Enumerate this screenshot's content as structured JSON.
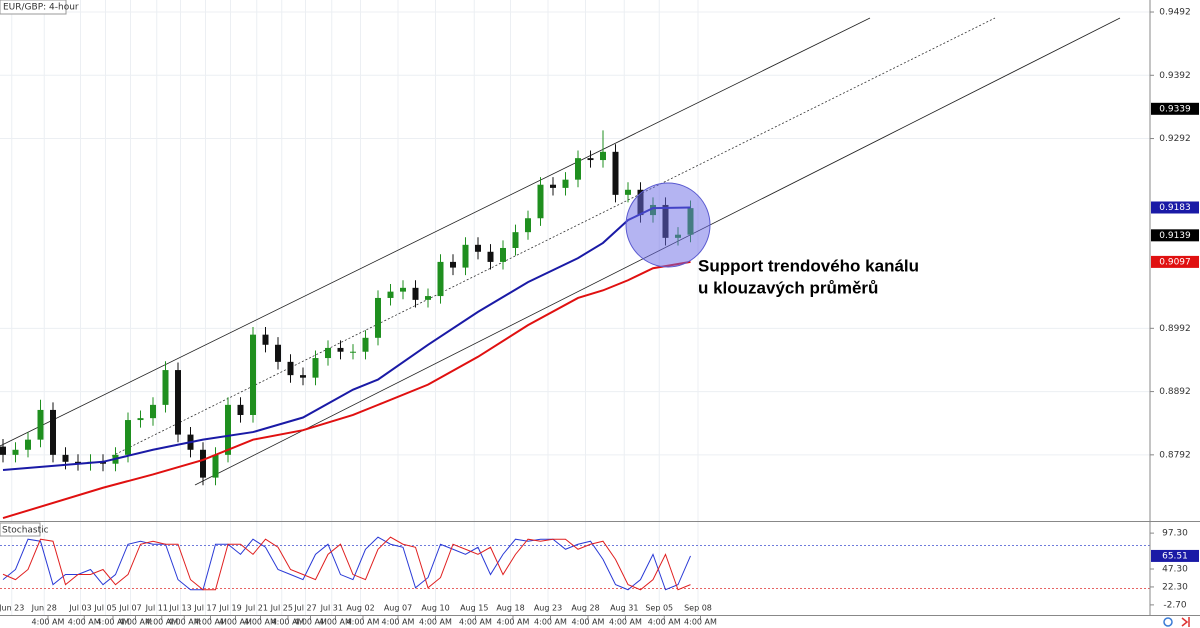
{
  "chart_data": {
    "type": "candlestick",
    "title": "EUR/GBP: 4-hour",
    "annotation": [
      "Support trendového kanálu",
      "u klouzavých průměrů"
    ],
    "up_color": "#1f8f1f",
    "down_color": "#111111",
    "open": [
      0.8805,
      0.8792,
      0.88,
      0.8816,
      0.8863,
      0.8792,
      0.8781,
      0.8779,
      0.8781,
      0.8778,
      0.8792,
      0.8847,
      0.885,
      0.8871,
      0.8926,
      0.8824,
      0.88,
      0.8756,
      0.8792,
      0.8871,
      0.8855,
      0.8982,
      0.8966,
      0.8939,
      0.8918,
      0.8914,
      0.8945,
      0.8961,
      0.8955,
      0.8955,
      0.8977,
      0.904,
      0.905,
      0.9056,
      0.9037,
      0.9043,
      0.9097,
      0.9088,
      0.9124,
      0.9113,
      0.9097,
      0.9119,
      0.9144,
      0.9166,
      0.9219,
      0.9214,
      0.9227,
      0.9261,
      0.9258,
      0.9271,
      0.9203,
      0.9211,
      0.9171,
      0.9187,
      0.9135,
      0.914
    ],
    "high": [
      0.8817,
      0.8812,
      0.8828,
      0.8879,
      0.8875,
      0.8804,
      0.8793,
      0.8793,
      0.8793,
      0.8804,
      0.8859,
      0.8862,
      0.8883,
      0.894,
      0.8938,
      0.8836,
      0.8812,
      0.8804,
      0.8883,
      0.8883,
      0.8994,
      0.8994,
      0.8978,
      0.8951,
      0.893,
      0.8957,
      0.8973,
      0.8973,
      0.8967,
      0.8989,
      0.9052,
      0.9062,
      0.9068,
      0.9068,
      0.9055,
      0.9109,
      0.9109,
      0.9136,
      0.9136,
      0.9125,
      0.9131,
      0.9156,
      0.9178,
      0.9231,
      0.9231,
      0.9239,
      0.9273,
      0.9273,
      0.9305,
      0.9283,
      0.9223,
      0.9223,
      0.9199,
      0.9199,
      0.9152,
      0.9194
    ],
    "low": [
      0.878,
      0.878,
      0.8788,
      0.8804,
      0.878,
      0.8769,
      0.8767,
      0.8767,
      0.8766,
      0.8766,
      0.878,
      0.8835,
      0.8838,
      0.8859,
      0.8812,
      0.8788,
      0.8744,
      0.8744,
      0.878,
      0.8843,
      0.8843,
      0.8954,
      0.8927,
      0.8906,
      0.8902,
      0.8902,
      0.8933,
      0.8943,
      0.8943,
      0.8943,
      0.8965,
      0.9028,
      0.9038,
      0.9025,
      0.9025,
      0.9031,
      0.9076,
      0.9076,
      0.9101,
      0.9085,
      0.9085,
      0.9107,
      0.9132,
      0.9154,
      0.9202,
      0.9202,
      0.9215,
      0.9246,
      0.9246,
      0.9191,
      0.9191,
      0.9159,
      0.9159,
      0.9123,
      0.9123,
      0.9128
    ],
    "close": [
      0.8792,
      0.88,
      0.8816,
      0.8863,
      0.8792,
      0.8781,
      0.8779,
      0.8781,
      0.8778,
      0.8792,
      0.8847,
      0.885,
      0.8871,
      0.8926,
      0.8824,
      0.88,
      0.8756,
      0.8792,
      0.8871,
      0.8855,
      0.8982,
      0.8966,
      0.8939,
      0.8918,
      0.8914,
      0.8945,
      0.8961,
      0.8955,
      0.8955,
      0.8977,
      0.904,
      0.905,
      0.9056,
      0.9037,
      0.9043,
      0.9097,
      0.9088,
      0.9124,
      0.9113,
      0.9097,
      0.9119,
      0.9144,
      0.9166,
      0.9219,
      0.9214,
      0.9227,
      0.9261,
      0.9258,
      0.9271,
      0.9203,
      0.9211,
      0.9171,
      0.9187,
      0.9135,
      0.914,
      0.9182
    ],
    "moving_averages": [
      {
        "color": "#1a1aa6",
        "x": [
          0,
          8,
          12,
          16,
          20,
          24,
          28,
          30,
          34,
          38,
          42,
          46,
          48,
          50,
          52,
          55
        ],
        "values": [
          0.8768,
          0.8781,
          0.88,
          0.8816,
          0.8828,
          0.8851,
          0.8895,
          0.8911,
          0.8966,
          0.9018,
          0.9065,
          0.9103,
          0.9127,
          0.9163,
          0.9182,
          0.9183
        ]
      },
      {
        "color": "#e01010",
        "x": [
          0,
          8,
          12,
          16,
          20,
          24,
          28,
          30,
          34,
          38,
          42,
          46,
          48,
          50,
          52,
          55
        ],
        "values": [
          0.8692,
          0.874,
          0.8761,
          0.8784,
          0.8816,
          0.8831,
          0.8855,
          0.8871,
          0.8903,
          0.8947,
          0.8997,
          0.904,
          0.9052,
          0.9068,
          0.9087,
          0.9097
        ]
      }
    ],
    "axis_markers": [
      {
        "value": 0.9339,
        "color": "#000000"
      },
      {
        "value": 0.9183,
        "color": "#1a1aa6"
      },
      {
        "value": 0.9139,
        "color": "#000000"
      },
      {
        "value": 0.9097,
        "color": "#e01010"
      }
    ],
    "xlim": [
      -0.24,
      91.76
    ],
    "ylim": [
      0.8689,
      0.9511
    ],
    "yticks": [
      0.9492,
      0.9392,
      0.9292,
      0.8992,
      0.8892,
      0.8792
    ],
    "xticks": [
      {
        "value": 0.7,
        "label": "Jun 23"
      },
      {
        "value": 3.3,
        "label": "Jun 28"
      },
      {
        "value": 6.2,
        "label": "Jul 03"
      },
      {
        "value": 8.2,
        "label": "Jul 05"
      },
      {
        "value": 10.2,
        "label": "Jul 07"
      },
      {
        "value": 12.3,
        "label": "Jul 11"
      },
      {
        "value": 14.2,
        "label": "Jul 13"
      },
      {
        "value": 16.2,
        "label": "Jul 17"
      },
      {
        "value": 18.2,
        "label": "Jul 19"
      },
      {
        "value": 20.3,
        "label": "Jul 21"
      },
      {
        "value": 22.3,
        "label": "Jul 25"
      },
      {
        "value": 24.2,
        "label": "Jul 27"
      },
      {
        "value": 26.3,
        "label": "Jul 31"
      },
      {
        "value": 28.6,
        "label": "Aug 02"
      },
      {
        "value": 31.6,
        "label": "Aug 07"
      },
      {
        "value": 34.6,
        "label": "Aug 10"
      },
      {
        "value": 37.7,
        "label": "Aug 15"
      },
      {
        "value": 40.6,
        "label": "Aug 18"
      },
      {
        "value": 43.6,
        "label": "Aug 23"
      },
      {
        "value": 46.6,
        "label": "Aug 28"
      },
      {
        "value": 49.7,
        "label": "Aug 31"
      },
      {
        "value": 52.5,
        "label": "Sep 05"
      },
      {
        "value": 55.6,
        "label": "Sep 08"
      }
    ],
    "time_ticks": [
      {
        "value": 3.6,
        "label": "4:00 AM"
      },
      {
        "value": 6.5,
        "label": "4:00 AM"
      },
      {
        "value": 8.8,
        "label": "4:00 AM"
      },
      {
        "value": 10.6,
        "label": "4:00 AM"
      },
      {
        "value": 12.7,
        "label": "4:00 AM"
      },
      {
        "value": 14.5,
        "label": "4:00 AM"
      },
      {
        "value": 16.6,
        "label": "4:00 AM"
      },
      {
        "value": 18.6,
        "label": "4:00 AM"
      },
      {
        "value": 20.6,
        "label": "4:00 AM"
      },
      {
        "value": 22.8,
        "label": "4:00 AM"
      },
      {
        "value": 24.6,
        "label": "4:00 AM"
      },
      {
        "value": 26.6,
        "label": "4:00 AM"
      },
      {
        "value": 28.8,
        "label": "4:00 AM"
      },
      {
        "value": 31.6,
        "label": "4:00 AM"
      },
      {
        "value": 34.6,
        "label": "4:00 AM"
      },
      {
        "value": 37.8,
        "label": "4:00 AM"
      },
      {
        "value": 40.8,
        "label": "4:00 AM"
      },
      {
        "value": 43.8,
        "label": "4:00 AM"
      },
      {
        "value": 46.8,
        "label": "4:00 AM"
      },
      {
        "value": 49.8,
        "label": "4:00 AM"
      },
      {
        "value": 52.9,
        "label": "4:00 AM"
      },
      {
        "value": 55.8,
        "label": "4:00 AM"
      }
    ],
    "stochastic": {
      "title": "Stochastic",
      "ylim": [
        -16.8,
        111.4
      ],
      "yticks": [
        {
          "value": 97.3,
          "label": "97.30"
        },
        {
          "value": 47.3,
          "label": "47.30"
        },
        {
          "value": 22.3,
          "label": "22.30"
        },
        {
          "value": -2.7,
          "label": "-2.70"
        }
      ],
      "levels": [
        80,
        20
      ],
      "marker": {
        "value": 65.51,
        "color": "#1a1aa6"
      },
      "series": [
        {
          "color": "#2a3ad6",
          "values": [
            32.5,
            46.6,
            88.8,
            86.0,
            25.5,
            39.6,
            39.6,
            46.6,
            25.5,
            39.6,
            81.8,
            86.0,
            81.8,
            81.8,
            32.5,
            18.4,
            18.4,
            81.8,
            81.8,
            67.7,
            88.8,
            77.6,
            46.6,
            39.6,
            32.5,
            67.7,
            81.8,
            39.6,
            32.5,
            74.8,
            91.7,
            81.8,
            77.6,
            21.2,
            35.3,
            81.8,
            74.8,
            67.7,
            77.6,
            39.6,
            67.7,
            88.8,
            86.0,
            88.8,
            88.8,
            74.8,
            81.8,
            86.0,
            60.7,
            25.5,
            18.4,
            32.5,
            67.7,
            18.4,
            25.5,
            65.51
          ]
        },
        {
          "color": "#e02020",
          "values": [
            40.0,
            32.5,
            46.6,
            88.8,
            86.0,
            25.5,
            39.6,
            39.6,
            46.6,
            25.5,
            39.6,
            81.8,
            86.0,
            81.8,
            81.8,
            32.5,
            18.4,
            18.4,
            81.8,
            81.8,
            67.7,
            88.8,
            77.6,
            46.6,
            39.6,
            32.5,
            67.7,
            81.8,
            39.6,
            32.5,
            74.8,
            91.7,
            81.8,
            77.6,
            21.2,
            35.3,
            81.8,
            74.8,
            67.7,
            77.6,
            39.6,
            67.7,
            88.8,
            86.0,
            88.8,
            88.8,
            74.8,
            81.8,
            86.0,
            60.7,
            25.5,
            18.4,
            32.5,
            67.7,
            18.4,
            25.5
          ]
        }
      ]
    }
  }
}
